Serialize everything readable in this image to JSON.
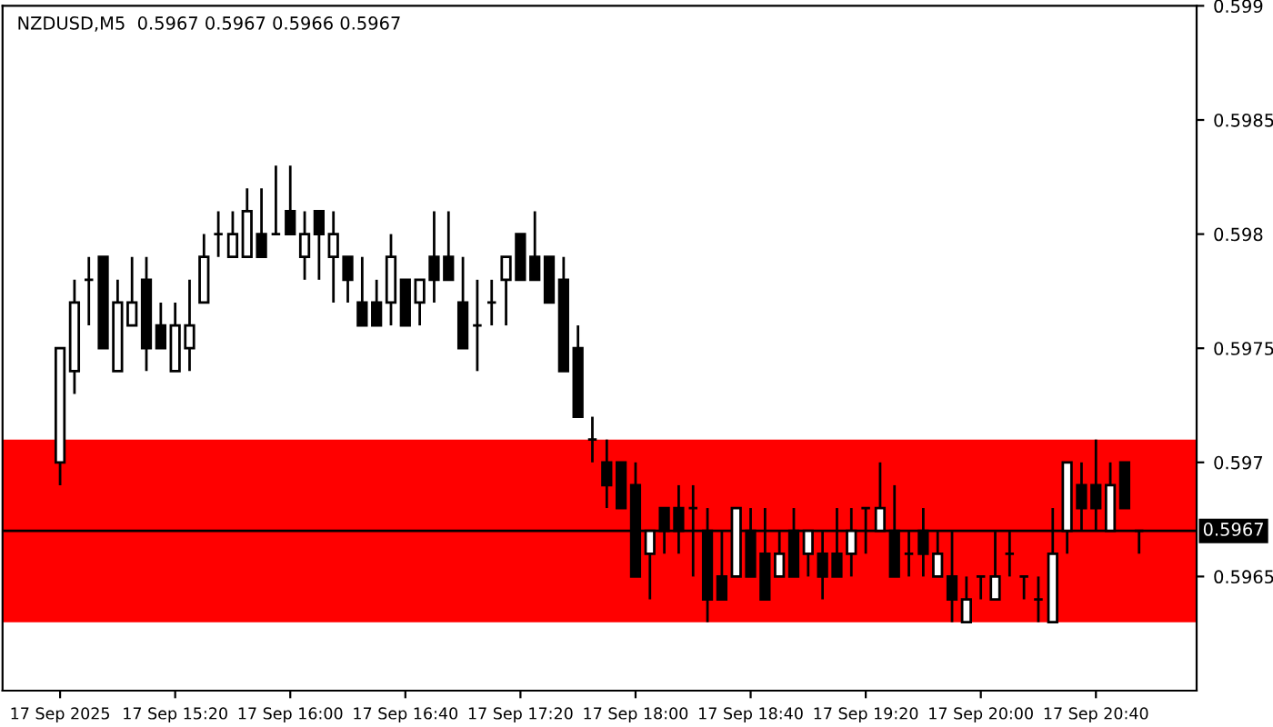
{
  "chart_data": {
    "type": "candlestick",
    "title": "NZDUSD,M5  0.5967 0.5967 0.5966 0.5967",
    "categories": [
      "17 Sep 2025",
      null,
      null,
      null,
      null,
      null,
      null,
      null,
      "17 Sep 15:20",
      null,
      null,
      null,
      null,
      null,
      null,
      null,
      "17 Sep 16:00",
      null,
      null,
      null,
      null,
      null,
      null,
      null,
      "17 Sep 16:40",
      null,
      null,
      null,
      null,
      null,
      null,
      null,
      "17 Sep 17:20",
      null,
      null,
      null,
      null,
      null,
      null,
      null,
      "17 Sep 18:00",
      null,
      null,
      null,
      null,
      null,
      null,
      null,
      "17 Sep 18:40",
      null,
      null,
      null,
      null,
      null,
      null,
      null,
      "17 Sep 19:20",
      null,
      null,
      null,
      null,
      null,
      null,
      null,
      "17 Sep 20:00",
      null,
      null,
      null,
      null,
      null,
      null,
      null,
      "17 Sep 20:40",
      null,
      null,
      null
    ],
    "ohlc": [
      [
        0.597,
        0.5975,
        0.5969,
        0.5975
      ],
      [
        0.5974,
        0.5978,
        0.5973,
        0.5977
      ],
      [
        0.5978,
        0.5979,
        0.5976,
        0.5978
      ],
      [
        0.5979,
        0.5979,
        0.5975,
        0.5975
      ],
      [
        0.5974,
        0.5978,
        0.5974,
        0.5977
      ],
      [
        0.5976,
        0.5979,
        0.5976,
        0.5977
      ],
      [
        0.5978,
        0.5979,
        0.5974,
        0.5975
      ],
      [
        0.5976,
        0.5977,
        0.5975,
        0.5975
      ],
      [
        0.5974,
        0.5977,
        0.5974,
        0.5976
      ],
      [
        0.5975,
        0.5978,
        0.5974,
        0.5976
      ],
      [
        0.5977,
        0.598,
        0.5977,
        0.5979
      ],
      [
        0.598,
        0.5981,
        0.5979,
        0.598
      ],
      [
        0.5979,
        0.5981,
        0.5979,
        0.598
      ],
      [
        0.5979,
        0.5982,
        0.5979,
        0.5981
      ],
      [
        0.598,
        0.5982,
        0.5979,
        0.5979
      ],
      [
        0.598,
        0.5983,
        0.598,
        0.598
      ],
      [
        0.5981,
        0.5983,
        0.598,
        0.598
      ],
      [
        0.5979,
        0.5981,
        0.5978,
        0.598
      ],
      [
        0.5981,
        0.5981,
        0.5978,
        0.598
      ],
      [
        0.5979,
        0.5981,
        0.5977,
        0.598
      ],
      [
        0.5979,
        0.5979,
        0.5977,
        0.5978
      ],
      [
        0.5977,
        0.5979,
        0.5976,
        0.5976
      ],
      [
        0.5977,
        0.5978,
        0.5976,
        0.5976
      ],
      [
        0.5977,
        0.598,
        0.5976,
        0.5979
      ],
      [
        0.5978,
        0.5978,
        0.5976,
        0.5976
      ],
      [
        0.5977,
        0.5978,
        0.5976,
        0.5978
      ],
      [
        0.5979,
        0.5981,
        0.5977,
        0.5978
      ],
      [
        0.5979,
        0.5981,
        0.5978,
        0.5978
      ],
      [
        0.5977,
        0.5979,
        0.5975,
        0.5975
      ],
      [
        0.5976,
        0.5978,
        0.5974,
        0.5976
      ],
      [
        0.5977,
        0.5978,
        0.5976,
        0.5977
      ],
      [
        0.5978,
        0.5979,
        0.5976,
        0.5979
      ],
      [
        0.598,
        0.598,
        0.5978,
        0.5978
      ],
      [
        0.5979,
        0.5981,
        0.5978,
        0.5978
      ],
      [
        0.5979,
        0.5979,
        0.5977,
        0.5977
      ],
      [
        0.5978,
        0.5979,
        0.5974,
        0.5974
      ],
      [
        0.5975,
        0.5976,
        0.5972,
        0.5972
      ],
      [
        0.5971,
        0.5972,
        0.597,
        0.5971
      ],
      [
        0.597,
        0.5971,
        0.5968,
        0.5969
      ],
      [
        0.597,
        0.597,
        0.5968,
        0.5968
      ],
      [
        0.5969,
        0.597,
        0.5965,
        0.5965
      ],
      [
        0.5966,
        0.5967,
        0.5964,
        0.5967
      ],
      [
        0.5968,
        0.5968,
        0.5966,
        0.5967
      ],
      [
        0.5968,
        0.5969,
        0.5966,
        0.5967
      ],
      [
        0.5968,
        0.5969,
        0.5965,
        0.5968
      ],
      [
        0.5967,
        0.5968,
        0.5963,
        0.5964
      ],
      [
        0.5965,
        0.5967,
        0.5964,
        0.5964
      ],
      [
        0.5965,
        0.5968,
        0.5965,
        0.5968
      ],
      [
        0.5967,
        0.5968,
        0.5965,
        0.5965
      ],
      [
        0.5966,
        0.5968,
        0.5964,
        0.5964
      ],
      [
        0.5965,
        0.5967,
        0.5965,
        0.5966
      ],
      [
        0.5967,
        0.5968,
        0.5965,
        0.5965
      ],
      [
        0.5966,
        0.5967,
        0.5965,
        0.5967
      ],
      [
        0.5966,
        0.5967,
        0.5964,
        0.5965
      ],
      [
        0.5966,
        0.5968,
        0.5965,
        0.5965
      ],
      [
        0.5966,
        0.5968,
        0.5965,
        0.5967
      ],
      [
        0.5968,
        0.5968,
        0.5966,
        0.5968
      ],
      [
        0.5967,
        0.597,
        0.5967,
        0.5968
      ],
      [
        0.5967,
        0.5969,
        0.5965,
        0.5965
      ],
      [
        0.5966,
        0.5967,
        0.5965,
        0.5966
      ],
      [
        0.5967,
        0.5968,
        0.5965,
        0.5966
      ],
      [
        0.5965,
        0.5967,
        0.5965,
        0.5966
      ],
      [
        0.5965,
        0.5967,
        0.5963,
        0.5964
      ],
      [
        0.5963,
        0.5965,
        0.5963,
        0.5964
      ],
      [
        0.5965,
        0.5965,
        0.5964,
        0.5965
      ],
      [
        0.5964,
        0.5967,
        0.5964,
        0.5965
      ],
      [
        0.5966,
        0.5967,
        0.5965,
        0.5966
      ],
      [
        0.5965,
        0.5965,
        0.5964,
        0.5965
      ],
      [
        0.5964,
        0.5965,
        0.5963,
        0.5964
      ],
      [
        0.5963,
        0.5968,
        0.5963,
        0.5966
      ],
      [
        0.5967,
        0.597,
        0.5966,
        0.597
      ],
      [
        0.5969,
        0.597,
        0.5967,
        0.5968
      ],
      [
        0.5969,
        0.5971,
        0.5967,
        0.5968
      ],
      [
        0.5967,
        0.597,
        0.5967,
        0.5969
      ],
      [
        0.597,
        0.597,
        0.5968,
        0.5968
      ],
      [
        0.5967,
        0.5967,
        0.5966,
        0.5967
      ]
    ],
    "ylim": [
      0.596,
      0.599
    ],
    "yticks": [
      0.5965,
      0.597,
      0.5975,
      0.598,
      0.5985,
      0.599
    ],
    "ref_lines": [
      {
        "axis": "y",
        "value": 0.5967,
        "label": "0.5967",
        "color": "#000000"
      }
    ],
    "bands": [
      {
        "axis": "y",
        "from": 0.5963,
        "to": 0.5971,
        "color": "#ff0000"
      }
    ],
    "grid": false
  }
}
